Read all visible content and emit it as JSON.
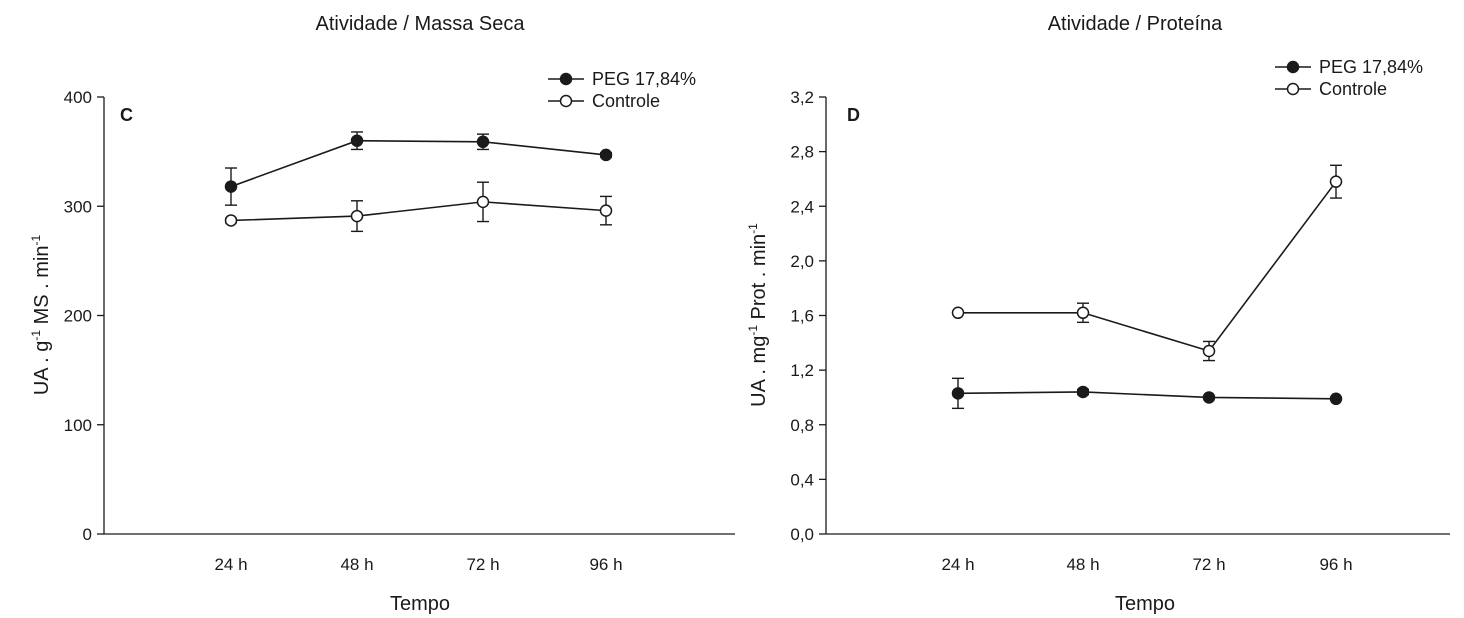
{
  "chart_data": [
    {
      "type": "line",
      "title": "Atividade / Massa Seca",
      "panel_label": "C",
      "xlabel": "Tempo",
      "ylabel": "UA . g-1 MS . min-1",
      "ylabel_parts": [
        "UA . g",
        "-1",
        " MS . min",
        "-1"
      ],
      "categories": [
        "24 h",
        "48 h",
        "72 h",
        "96 h"
      ],
      "ylim": [
        0,
        400
      ],
      "yticks": [
        "0",
        "100",
        "200",
        "300",
        "400"
      ],
      "yticks_values": [
        0,
        100,
        200,
        300,
        400
      ],
      "grid": false,
      "legend_position": "top-right",
      "series": [
        {
          "name": "PEG 17,84%",
          "marker": "filled-circle",
          "values": [
            318,
            360,
            359,
            347
          ],
          "errors": [
            17,
            8,
            7,
            2
          ]
        },
        {
          "name": "Controle",
          "marker": "open-circle",
          "values": [
            287,
            291,
            304,
            296
          ],
          "errors": [
            2,
            14,
            18,
            13
          ]
        }
      ]
    },
    {
      "type": "line",
      "title": "Atividade / Proteína",
      "panel_label": "D",
      "xlabel": "Tempo",
      "ylabel": "UA . mg-1 Prot . min-1",
      "ylabel_parts": [
        "UA . mg",
        "-1",
        " Prot . min",
        "-1"
      ],
      "categories": [
        "24 h",
        "48 h",
        "72 h",
        "96 h"
      ],
      "ylim": [
        0,
        3.2
      ],
      "yticks": [
        "0,0",
        "0,4",
        "0,8",
        "1,2",
        "1,6",
        "2,0",
        "2,4",
        "2,8",
        "3,2"
      ],
      "yticks_values": [
        0,
        0.4,
        0.8,
        1.2,
        1.6,
        2.0,
        2.4,
        2.8,
        3.2
      ],
      "grid": false,
      "legend_position": "top-right",
      "series": [
        {
          "name": "PEG 17,84%",
          "marker": "filled-circle",
          "values": [
            1.03,
            1.04,
            1.0,
            0.99
          ],
          "errors": [
            0.11,
            0.02,
            0.01,
            0.01
          ]
        },
        {
          "name": "Controle",
          "marker": "open-circle",
          "values": [
            1.62,
            1.62,
            1.34,
            2.58
          ],
          "errors": [
            0.01,
            0.07,
            0.07,
            0.12
          ]
        }
      ]
    }
  ],
  "colors": {
    "line": "#1a1a1a",
    "axis": "#1a1a1a",
    "open_marker_fill": "#ffffff"
  }
}
